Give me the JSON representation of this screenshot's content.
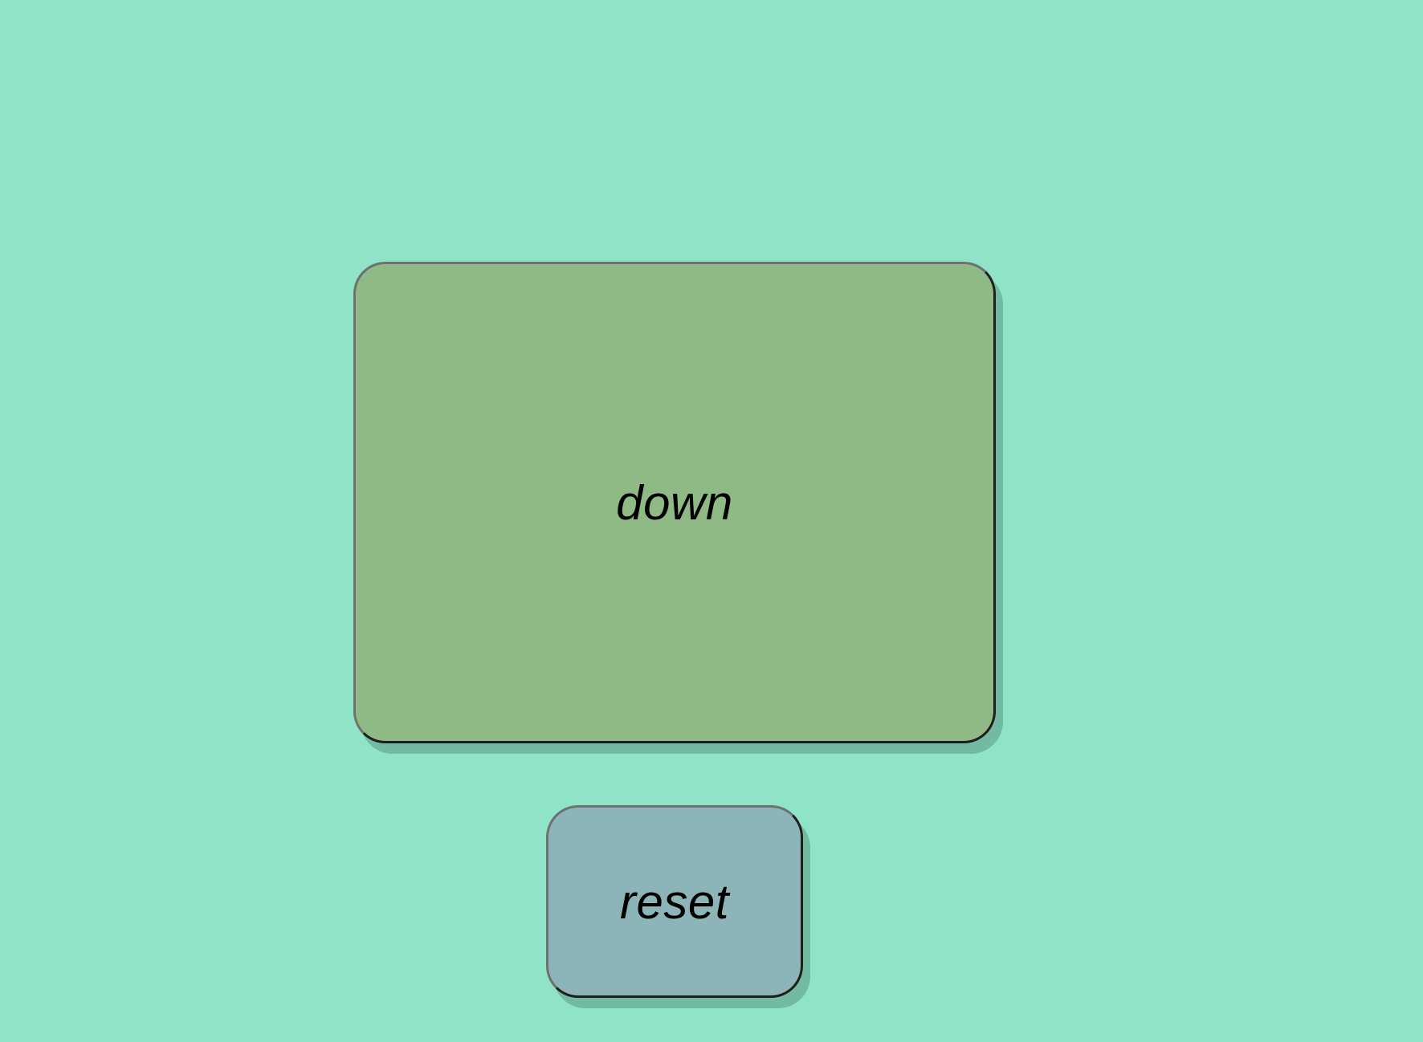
{
  "buttons": {
    "down": {
      "label": "down"
    },
    "reset": {
      "label": "reset"
    }
  },
  "colors": {
    "background": "#8fe4c8",
    "down_button": "#8fba86",
    "reset_button": "#8cb4b9"
  }
}
